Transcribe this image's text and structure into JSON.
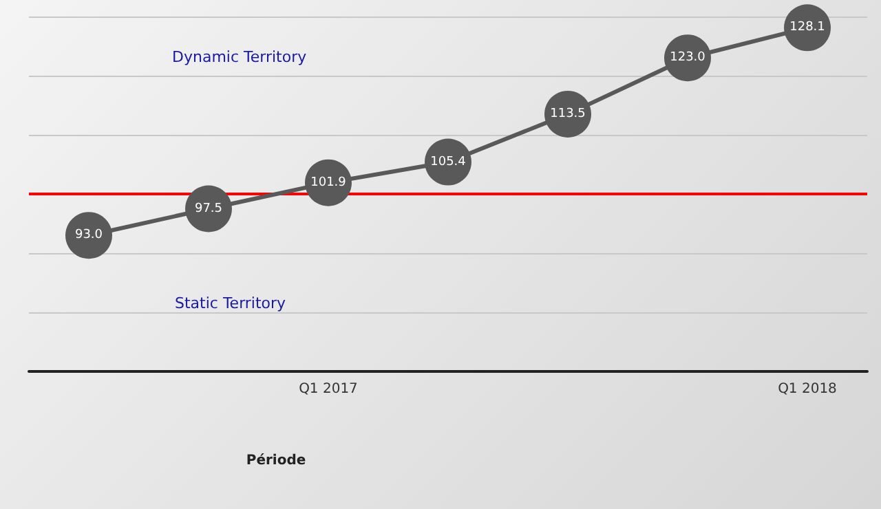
{
  "chart_data": {
    "type": "line",
    "xlabel": "Période",
    "categories": [
      null,
      null,
      "Q1 2017",
      null,
      null,
      null,
      "Q1 2018"
    ],
    "series": [
      {
        "color": "#595959",
        "values": [
          93.0,
          97.5,
          101.9,
          105.4,
          113.5,
          123.0,
          128.1
        ],
        "value_labels": [
          "93.0",
          "97.5",
          "101.9",
          "105.4",
          "113.5",
          "123.0",
          "128.1"
        ]
      }
    ],
    "ylim": [
      70,
      130
    ],
    "yticks": [
      {
        "value": 70,
        "label": null
      },
      {
        "value": 80,
        "label": null
      },
      {
        "value": 90,
        "label": null
      },
      {
        "value": 100,
        "label": null
      },
      {
        "value": 110,
        "label": null
      },
      {
        "value": 120,
        "label": null
      },
      {
        "value": 130,
        "label": null
      }
    ],
    "tick_labels": "x",
    "grid": "y",
    "marker": "circle",
    "ref_lines": [
      {
        "axis": "y",
        "value": 100,
        "color": "#ff0000"
      }
    ],
    "annotations": [
      "Dynamic Territory",
      "Static Territory"
    ]
  }
}
